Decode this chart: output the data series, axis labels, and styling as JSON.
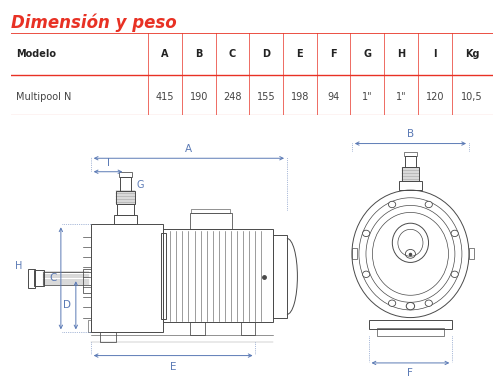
{
  "title": "Dimensión y peso",
  "title_color": "#e83124",
  "table_headers": [
    "Modelo",
    "A",
    "B",
    "C",
    "D",
    "E",
    "F",
    "G",
    "H",
    "I",
    "Kg"
  ],
  "table_row": [
    "Multipool N",
    "415",
    "190",
    "248",
    "155",
    "198",
    "94",
    "1\"",
    "1\"",
    "120",
    "10,5"
  ],
  "bg_color": "#ffffff",
  "table_line_color": "#e83124",
  "dim_label_color": "#5b7ab5",
  "drawing_color": "#4a4a4a",
  "drawing_color_light": "#888888"
}
